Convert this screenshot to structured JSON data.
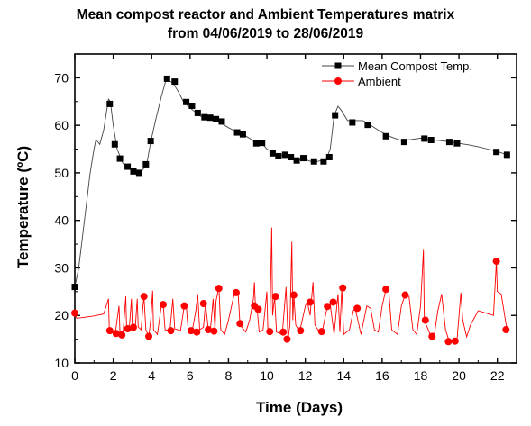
{
  "chart_data": {
    "type": "line",
    "title_line1": "Mean compost reactor and Ambient Temperatures matrix",
    "title_line2": "from 04/06/2019 to 28/06/2019",
    "xlabel": "Time (Days)",
    "ylabel": "Temperature (ºC)",
    "xlim": [
      0,
      23
    ],
    "ylim": [
      10,
      75
    ],
    "xticks": [
      0,
      2,
      4,
      6,
      8,
      10,
      12,
      14,
      16,
      18,
      20,
      22
    ],
    "yticks": [
      10,
      20,
      30,
      40,
      50,
      60,
      70
    ],
    "grid": false,
    "legend_position": "top-right",
    "colors": {
      "compost": "#000000",
      "ambient": "#ff0000",
      "compost_line": "#444444"
    },
    "series": [
      {
        "name": "Mean Compost Temp.",
        "marker": "square",
        "line": [
          [
            0,
            26
          ],
          [
            0.2,
            30
          ],
          [
            0.5,
            40
          ],
          [
            0.8,
            50
          ],
          [
            1.0,
            55
          ],
          [
            1.1,
            57
          ],
          [
            1.3,
            56
          ],
          [
            1.5,
            59
          ],
          [
            1.75,
            65.5
          ],
          [
            1.85,
            65
          ],
          [
            2.0,
            60
          ],
          [
            2.2,
            55
          ],
          [
            2.5,
            52
          ],
          [
            2.8,
            51
          ],
          [
            3.1,
            50.3
          ],
          [
            3.4,
            50
          ],
          [
            3.6,
            51
          ],
          [
            3.75,
            52
          ],
          [
            3.95,
            56.5
          ],
          [
            4.2,
            61
          ],
          [
            4.5,
            66
          ],
          [
            4.75,
            69.6
          ],
          [
            5.1,
            69
          ],
          [
            5.4,
            67
          ],
          [
            5.65,
            65
          ],
          [
            5.9,
            64
          ],
          [
            6.2,
            63
          ],
          [
            6.5,
            62
          ],
          [
            6.8,
            61.5
          ],
          [
            7.2,
            61
          ],
          [
            7.6,
            60.5
          ],
          [
            8.0,
            59.5
          ],
          [
            8.4,
            58.7
          ],
          [
            8.8,
            58
          ],
          [
            9.2,
            57
          ],
          [
            9.5,
            56.3
          ],
          [
            9.8,
            56
          ],
          [
            10.0,
            55
          ],
          [
            10.25,
            54.5
          ],
          [
            10.5,
            53.9
          ],
          [
            10.8,
            53.7
          ],
          [
            11.1,
            53.3
          ],
          [
            11.4,
            52.9
          ],
          [
            11.7,
            52.7
          ],
          [
            12.0,
            52.8
          ],
          [
            12.3,
            52.4
          ],
          [
            12.6,
            52.4
          ],
          [
            12.9,
            52.6
          ],
          [
            13.1,
            53
          ],
          [
            13.3,
            55
          ],
          [
            13.5,
            62
          ],
          [
            13.7,
            64
          ],
          [
            13.9,
            63
          ],
          [
            14.2,
            61
          ],
          [
            14.6,
            61
          ],
          [
            15.0,
            61
          ],
          [
            15.3,
            60.3
          ],
          [
            15.6,
            59.5
          ],
          [
            16.0,
            58.5
          ],
          [
            16.5,
            57.5
          ],
          [
            17.0,
            56.8
          ],
          [
            17.5,
            57
          ],
          [
            18.0,
            57.3
          ],
          [
            18.5,
            57
          ],
          [
            19.0,
            56.8
          ],
          [
            19.5,
            56.5
          ],
          [
            20.0,
            56.2
          ],
          [
            20.5,
            55.9
          ],
          [
            21.0,
            55.5
          ],
          [
            21.5,
            55
          ],
          [
            22.0,
            54.5
          ],
          [
            22.5,
            53.8
          ]
        ],
        "markers": [
          [
            0,
            26
          ],
          [
            1.82,
            64.5
          ],
          [
            2.08,
            56
          ],
          [
            2.35,
            53
          ],
          [
            2.75,
            51.3
          ],
          [
            3.05,
            50.3
          ],
          [
            3.35,
            50
          ],
          [
            3.7,
            51.8
          ],
          [
            3.95,
            56.7
          ],
          [
            4.8,
            69.8
          ],
          [
            5.2,
            69.2
          ],
          [
            5.8,
            64.9
          ],
          [
            6.1,
            64.1
          ],
          [
            6.4,
            62.6
          ],
          [
            6.75,
            61.7
          ],
          [
            7.05,
            61.6
          ],
          [
            7.35,
            61.3
          ],
          [
            7.65,
            60.8
          ],
          [
            8.45,
            58.5
          ],
          [
            8.75,
            58.1
          ],
          [
            9.45,
            56.2
          ],
          [
            9.75,
            56.3
          ],
          [
            10.3,
            54.1
          ],
          [
            10.6,
            53.5
          ],
          [
            10.95,
            53.8
          ],
          [
            11.25,
            53.3
          ],
          [
            11.55,
            52.6
          ],
          [
            11.9,
            53.1
          ],
          [
            12.45,
            52.4
          ],
          [
            12.95,
            52.4
          ],
          [
            13.25,
            53.3
          ],
          [
            13.55,
            62.1
          ],
          [
            14.45,
            60.6
          ],
          [
            15.25,
            60.1
          ],
          [
            16.2,
            57.7
          ],
          [
            17.15,
            56.5
          ],
          [
            18.2,
            57.2
          ],
          [
            18.55,
            56.9
          ],
          [
            19.5,
            56.5
          ],
          [
            19.9,
            56.2
          ],
          [
            21.95,
            54.4
          ],
          [
            22.5,
            53.8
          ]
        ]
      },
      {
        "name": "Ambient",
        "marker": "circle",
        "line": [
          [
            0,
            20.5
          ],
          [
            0.1,
            19.4
          ],
          [
            0.5,
            19.6
          ],
          [
            1.0,
            19.9
          ],
          [
            1.5,
            20.3
          ],
          [
            1.75,
            23.5
          ],
          [
            1.8,
            16.8
          ],
          [
            1.9,
            16.5
          ],
          [
            2.1,
            16
          ],
          [
            2.3,
            22
          ],
          [
            2.35,
            16.2
          ],
          [
            2.5,
            15.8
          ],
          [
            2.65,
            24
          ],
          [
            2.7,
            17
          ],
          [
            2.85,
            18
          ],
          [
            2.95,
            23.5
          ],
          [
            3.0,
            17.2
          ],
          [
            3.15,
            17.5
          ],
          [
            3.25,
            23.5
          ],
          [
            3.3,
            17.6
          ],
          [
            3.45,
            17
          ],
          [
            3.55,
            22
          ],
          [
            3.6,
            24
          ],
          [
            3.7,
            17
          ],
          [
            3.85,
            15.6
          ],
          [
            3.95,
            19
          ],
          [
            4.05,
            25.2
          ],
          [
            4.1,
            17
          ],
          [
            4.3,
            16
          ],
          [
            4.5,
            22
          ],
          [
            4.6,
            22.3
          ],
          [
            4.7,
            17
          ],
          [
            4.95,
            16.8
          ],
          [
            5.1,
            23.5
          ],
          [
            5.2,
            17.2
          ],
          [
            5.5,
            16.8
          ],
          [
            5.7,
            22
          ],
          [
            5.8,
            22
          ],
          [
            5.9,
            17
          ],
          [
            6.1,
            16.5
          ],
          [
            6.3,
            21
          ],
          [
            6.4,
            24.5
          ],
          [
            6.5,
            17
          ],
          [
            6.7,
            17.5
          ],
          [
            6.8,
            22.5
          ],
          [
            6.95,
            17
          ],
          [
            7.05,
            16.5
          ],
          [
            7.2,
            23.5
          ],
          [
            7.3,
            17
          ],
          [
            7.35,
            23
          ],
          [
            7.5,
            26
          ],
          [
            7.6,
            17
          ],
          [
            7.8,
            16
          ],
          [
            8.0,
            19
          ],
          [
            8.3,
            24.5
          ],
          [
            8.5,
            24.8
          ],
          [
            8.6,
            18
          ],
          [
            8.9,
            16.5
          ],
          [
            9.1,
            19
          ],
          [
            9.3,
            23.5
          ],
          [
            9.35,
            27
          ],
          [
            9.4,
            22
          ],
          [
            9.5,
            21
          ],
          [
            9.6,
            16.5
          ],
          [
            9.8,
            17
          ],
          [
            10.0,
            25
          ],
          [
            10.05,
            17
          ],
          [
            10.15,
            16.6
          ],
          [
            10.25,
            38.5
          ],
          [
            10.3,
            20
          ],
          [
            10.4,
            24
          ],
          [
            10.5,
            16.5
          ],
          [
            10.8,
            16
          ],
          [
            11.0,
            26
          ],
          [
            11.1,
            15
          ],
          [
            11.2,
            18
          ],
          [
            11.3,
            35.5
          ],
          [
            11.35,
            19
          ],
          [
            11.4,
            24.3
          ],
          [
            11.5,
            18
          ],
          [
            11.7,
            16.5
          ],
          [
            12.0,
            22
          ],
          [
            12.1,
            23
          ],
          [
            12.25,
            20
          ],
          [
            12.4,
            27
          ],
          [
            12.5,
            18
          ],
          [
            12.7,
            16.7
          ],
          [
            12.9,
            17
          ],
          [
            13.1,
            21
          ],
          [
            13.3,
            22.3
          ],
          [
            13.5,
            16
          ],
          [
            13.7,
            24.5
          ],
          [
            13.8,
            16.5
          ],
          [
            13.9,
            25.7
          ],
          [
            14.0,
            16
          ],
          [
            14.3,
            17
          ],
          [
            14.5,
            21
          ],
          [
            14.6,
            21.5
          ],
          [
            14.9,
            16
          ],
          [
            15.2,
            22
          ],
          [
            15.4,
            21.5
          ],
          [
            15.6,
            17
          ],
          [
            15.8,
            16.5
          ],
          [
            16.0,
            22
          ],
          [
            16.2,
            25.5
          ],
          [
            16.35,
            25
          ],
          [
            16.5,
            17
          ],
          [
            16.8,
            16
          ],
          [
            17.0,
            22
          ],
          [
            17.2,
            24.3
          ],
          [
            17.4,
            24
          ],
          [
            17.6,
            17
          ],
          [
            17.8,
            16
          ],
          [
            18.0,
            22
          ],
          [
            18.15,
            33.8
          ],
          [
            18.2,
            19
          ],
          [
            18.5,
            16
          ],
          [
            18.7,
            15.5
          ],
          [
            18.9,
            21
          ],
          [
            19.1,
            24.5
          ],
          [
            19.3,
            17
          ],
          [
            19.5,
            14.5
          ],
          [
            19.7,
            14.5
          ],
          [
            19.9,
            15
          ],
          [
            20.1,
            24.8
          ],
          [
            20.2,
            19
          ],
          [
            20.4,
            15.5
          ],
          [
            20.6,
            18
          ],
          [
            21.0,
            21
          ],
          [
            21.4,
            20.5
          ],
          [
            21.8,
            20
          ],
          [
            21.95,
            31.4
          ],
          [
            22.0,
            25
          ],
          [
            22.2,
            24.5
          ],
          [
            22.3,
            22
          ],
          [
            22.5,
            17
          ]
        ],
        "markers": [
          [
            0,
            20.5
          ],
          [
            1.82,
            16.8
          ],
          [
            2.15,
            16.2
          ],
          [
            2.45,
            15.9
          ],
          [
            2.75,
            17.2
          ],
          [
            3.05,
            17.5
          ],
          [
            3.6,
            24
          ],
          [
            3.85,
            15.6
          ],
          [
            4.6,
            22.3
          ],
          [
            5.0,
            16.8
          ],
          [
            5.7,
            22
          ],
          [
            6.05,
            16.8
          ],
          [
            6.35,
            16.5
          ],
          [
            6.7,
            22.5
          ],
          [
            6.95,
            17
          ],
          [
            7.25,
            16.7
          ],
          [
            7.5,
            25.7
          ],
          [
            8.4,
            24.8
          ],
          [
            8.6,
            18.3
          ],
          [
            9.35,
            22
          ],
          [
            9.55,
            21.3
          ],
          [
            10.15,
            16.6
          ],
          [
            10.45,
            24
          ],
          [
            10.85,
            16.5
          ],
          [
            11.05,
            15
          ],
          [
            11.4,
            24.3
          ],
          [
            11.75,
            16.8
          ],
          [
            12.25,
            22.8
          ],
          [
            12.85,
            16.6
          ],
          [
            13.15,
            21.9
          ],
          [
            13.45,
            22.8
          ],
          [
            13.95,
            25.8
          ],
          [
            14.7,
            21.5
          ],
          [
            16.2,
            25.5
          ],
          [
            17.2,
            24.3
          ],
          [
            18.25,
            19
          ],
          [
            18.6,
            15.6
          ],
          [
            19.45,
            14.5
          ],
          [
            19.8,
            14.6
          ],
          [
            21.95,
            31.4
          ],
          [
            22.45,
            17
          ]
        ]
      }
    ]
  }
}
